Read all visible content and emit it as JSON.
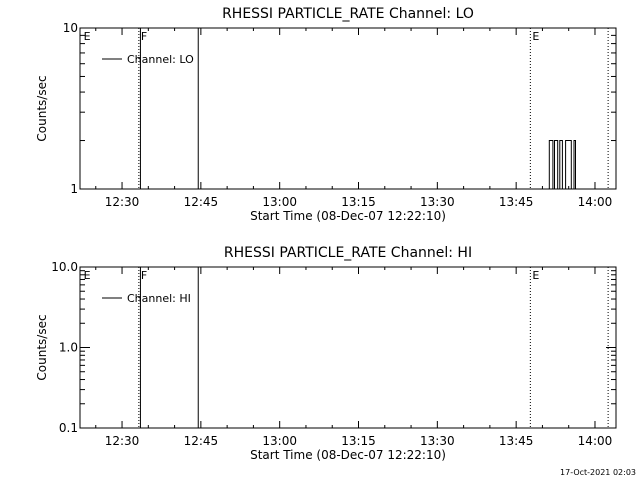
{
  "footer": {
    "timestamp": "17-Oct-2021 02:03"
  },
  "chart_data": [
    {
      "type": "line",
      "title": "RHESSI PARTICLE_RATE Channel: LO",
      "xlabel": "Start Time (08-Dec-07 12:22:10)",
      "ylabel": "Counts/sec",
      "yscale": "log",
      "ylim": [
        1,
        10
      ],
      "xlim": [
        742,
        844
      ],
      "xticks": [
        {
          "v": 750,
          "label": "12:30"
        },
        {
          "v": 765,
          "label": "12:45"
        },
        {
          "v": 780,
          "label": "13:00"
        },
        {
          "v": 795,
          "label": "13:15"
        },
        {
          "v": 810,
          "label": "13:30"
        },
        {
          "v": 825,
          "label": "13:45"
        },
        {
          "v": 840,
          "label": "14:00"
        }
      ],
      "yticks": [
        {
          "v": 1,
          "label": "1"
        },
        {
          "v": 10,
          "label": "10"
        }
      ],
      "legend": {
        "label": "Channel: LO",
        "position": "top-left"
      },
      "flags": [
        {
          "v": 742.3,
          "label": "E",
          "style": "none"
        },
        {
          "v": 753.2,
          "label": "F",
          "style": "dotted"
        },
        {
          "v": 827.7,
          "label": "E",
          "style": "dotted"
        },
        {
          "v": 842.5,
          "label": "",
          "style": "dotted"
        }
      ],
      "vlines": [
        753.5,
        764.5
      ],
      "series": [
        {
          "name": "Channel: LO",
          "x": [
            831.3,
            831.3,
            832.0,
            832.0,
            832.3,
            832.3,
            832.9,
            832.9,
            833.3,
            833.3,
            833.8,
            833.8,
            834.4,
            834.4,
            835.0,
            835.0,
            835.5,
            835.5,
            836.0,
            836.0,
            836.3,
            836.3
          ],
          "y": [
            1,
            2,
            2,
            1,
            1,
            2,
            2,
            1,
            1,
            2,
            2,
            1,
            1,
            2,
            2,
            2,
            2,
            1,
            1,
            2,
            2,
            1
          ]
        }
      ]
    },
    {
      "type": "line",
      "title": "RHESSI PARTICLE_RATE Channel: HI",
      "xlabel": "Start Time (08-Dec-07 12:22:10)",
      "ylabel": "Counts/sec",
      "yscale": "log",
      "ylim": [
        0.1,
        10
      ],
      "xlim": [
        742,
        844
      ],
      "xticks": [
        {
          "v": 750,
          "label": "12:30"
        },
        {
          "v": 765,
          "label": "12:45"
        },
        {
          "v": 780,
          "label": "13:00"
        },
        {
          "v": 795,
          "label": "13:15"
        },
        {
          "v": 810,
          "label": "13:30"
        },
        {
          "v": 825,
          "label": "13:45"
        },
        {
          "v": 840,
          "label": "14:00"
        }
      ],
      "yticks": [
        {
          "v": 0.1,
          "label": "0.1"
        },
        {
          "v": 1,
          "label": "1.0"
        },
        {
          "v": 10,
          "label": "10.0"
        }
      ],
      "legend": {
        "label": "Channel: HI",
        "position": "top-left"
      },
      "flags": [
        {
          "v": 742.3,
          "label": "E",
          "style": "none"
        },
        {
          "v": 753.2,
          "label": "F",
          "style": "dotted"
        },
        {
          "v": 827.7,
          "label": "E",
          "style": "dotted"
        },
        {
          "v": 842.5,
          "label": "",
          "style": "dotted"
        }
      ],
      "vlines": [
        753.5,
        764.5
      ],
      "series": [
        {
          "name": "Channel: HI",
          "x": [],
          "y": []
        }
      ]
    }
  ]
}
